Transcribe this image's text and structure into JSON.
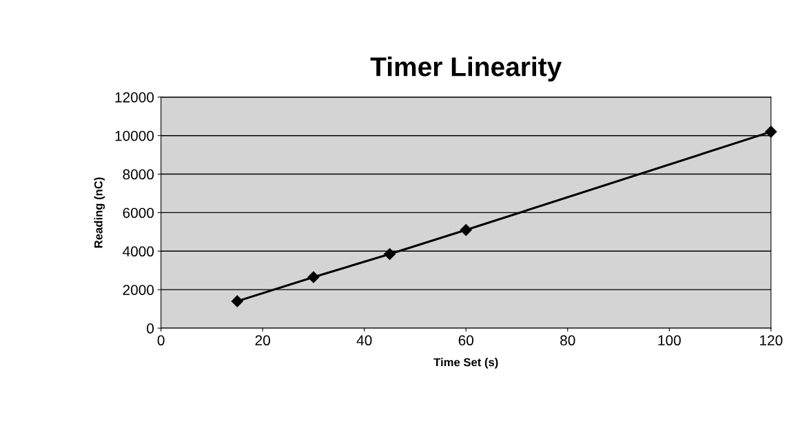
{
  "chart_data": {
    "type": "line",
    "title": "Timer Linearity",
    "xlabel": "Time Set (s)",
    "ylabel": "Reading (nC)",
    "x": [
      15,
      30,
      45,
      60,
      120
    ],
    "series": [
      {
        "color": "#000000",
        "values": [
          1400,
          2650,
          3850,
          5100,
          10200
        ]
      }
    ],
    "xlim": [
      0,
      120
    ],
    "xticks": [
      0,
      20,
      40,
      60,
      80,
      100,
      120
    ],
    "ylim": [
      0,
      12000
    ],
    "yticks": [
      0,
      2000,
      4000,
      6000,
      8000,
      10000,
      12000
    ],
    "grid": "y",
    "marker": "diamond",
    "line_style": "solid"
  }
}
